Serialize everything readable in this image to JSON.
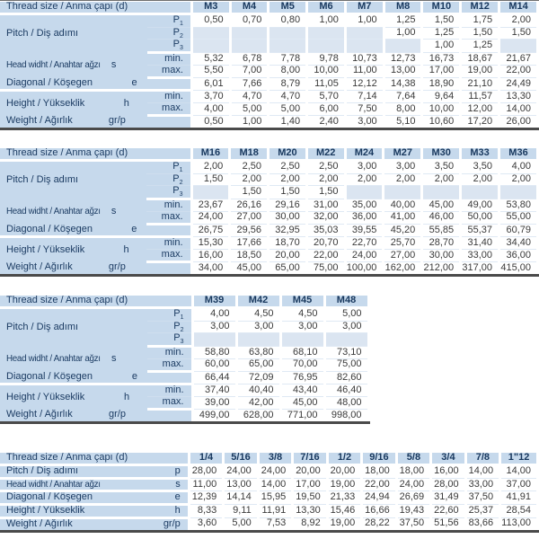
{
  "colors": {
    "label_bg": "#c6d9ec",
    "empty_cell_bg": "#dbe5f1",
    "gridline": "#dfe9f4",
    "label_text": "#1c3c63",
    "header_text": "#17375d",
    "number_text": "#3a3a3a",
    "table_bottom_border": "#4a4a4a"
  },
  "labels": {
    "thread_size": "Thread size / Anma çapı (d)",
    "pitch": "Pitch / Diş adımı",
    "head_width": "Head widht / Anahtar ağzı",
    "diagonal": "Diagonal / Köşegen",
    "height": "Height / Yükseklik",
    "weight": "Weight / Ağırlık",
    "min": "min.",
    "max": "max.",
    "p": "P",
    "sub1": "1",
    "sub2": "2",
    "sub3": "3",
    "sym_head": "s",
    "sym_diagonal": "e",
    "sym_height": "h",
    "sym_weight": "gr/p",
    "sym_pitch_imperial": "p"
  },
  "tables": [
    {
      "id": "metric-1",
      "columns": [
        "M3",
        "M4",
        "M5",
        "M6",
        "M7",
        "M8",
        "M10",
        "M12",
        "M14"
      ],
      "rows": {
        "p1": [
          "0,50",
          "0,70",
          "0,80",
          "1,00",
          "1,00",
          "1,25",
          "1,50",
          "1,75",
          "2,00"
        ],
        "p2": [
          "",
          "",
          "",
          "",
          "",
          "1,00",
          "1,25",
          "1,50",
          "1,50"
        ],
        "p3": [
          "",
          "",
          "",
          "",
          "",
          "",
          "1,00",
          "1,25",
          ""
        ],
        "head_min": [
          "5,32",
          "6,78",
          "7,78",
          "9,78",
          "10,73",
          "12,73",
          "16,73",
          "18,67",
          "21,67"
        ],
        "head_max": [
          "5,50",
          "7,00",
          "8,00",
          "10,00",
          "11,00",
          "13,00",
          "17,00",
          "19,00",
          "22,00"
        ],
        "diagonal": [
          "6,01",
          "7,66",
          "8,79",
          "11,05",
          "12,12",
          "14,38",
          "18,90",
          "21,10",
          "24,49"
        ],
        "height_min": [
          "3,70",
          "4,70",
          "4,70",
          "5,70",
          "7,14",
          "7,64",
          "9,64",
          "11,57",
          "13,30"
        ],
        "height_max": [
          "4,00",
          "5,00",
          "5,00",
          "6,00",
          "7,50",
          "8,00",
          "10,00",
          "12,00",
          "14,00"
        ],
        "weight": [
          "0,50",
          "1,00",
          "1,40",
          "2,40",
          "3,00",
          "5,10",
          "10,60",
          "17,20",
          "26,00"
        ]
      }
    },
    {
      "id": "metric-2",
      "columns": [
        "M16",
        "M18",
        "M20",
        "M22",
        "M24",
        "M27",
        "M30",
        "M33",
        "M36"
      ],
      "rows": {
        "p1": [
          "2,00",
          "2,50",
          "2,50",
          "2,50",
          "3,00",
          "3,00",
          "3,50",
          "3,50",
          "4,00"
        ],
        "p2": [
          "1,50",
          "2,00",
          "2,00",
          "2,00",
          "2,00",
          "2,00",
          "2,00",
          "2,00",
          "2,00"
        ],
        "p3": [
          "",
          "1,50",
          "1,50",
          "1,50",
          "",
          "",
          "",
          "",
          ""
        ],
        "head_min": [
          "23,67",
          "26,16",
          "29,16",
          "31,00",
          "35,00",
          "40,00",
          "45,00",
          "49,00",
          "53,80"
        ],
        "head_max": [
          "24,00",
          "27,00",
          "30,00",
          "32,00",
          "36,00",
          "41,00",
          "46,00",
          "50,00",
          "55,00"
        ],
        "diagonal": [
          "26,75",
          "29,56",
          "32,95",
          "35,03",
          "39,55",
          "45,20",
          "55,85",
          "55,37",
          "60,79"
        ],
        "height_min": [
          "15,30",
          "17,66",
          "18,70",
          "20,70",
          "22,70",
          "25,70",
          "28,70",
          "31,40",
          "34,40"
        ],
        "height_max": [
          "16,00",
          "18,50",
          "20,00",
          "22,00",
          "24,00",
          "27,00",
          "30,00",
          "33,00",
          "36,00"
        ],
        "weight": [
          "34,00",
          "45,00",
          "65,00",
          "75,00",
          "100,00",
          "162,00",
          "212,00",
          "317,00",
          "415,00"
        ]
      }
    },
    {
      "id": "metric-3",
      "columns": [
        "M39",
        "M42",
        "M45",
        "M48"
      ],
      "rows": {
        "p1": [
          "4,00",
          "4,50",
          "4,50",
          "5,00"
        ],
        "p2": [
          "3,00",
          "3,00",
          "3,00",
          "3,00"
        ],
        "p3": [
          "",
          "",
          "",
          ""
        ],
        "head_min": [
          "58,80",
          "63,80",
          "68,10",
          "73,10"
        ],
        "head_max": [
          "60,00",
          "65,00",
          "70,00",
          "75,00"
        ],
        "diagonal": [
          "66,44",
          "72,09",
          "76,95",
          "82,60"
        ],
        "height_min": [
          "37,40",
          "40,40",
          "43,40",
          "46,40"
        ],
        "height_max": [
          "39,00",
          "42,00",
          "45,00",
          "48,00"
        ],
        "weight": [
          "499,00",
          "628,00",
          "771,00",
          "998,00"
        ]
      }
    },
    {
      "id": "imperial",
      "columns": [
        "1/4",
        "5/16",
        "3/8",
        "7/16",
        "1/2",
        "9/16",
        "5/8",
        "3/4",
        "7/8",
        "1\"12"
      ],
      "rows": {
        "pitch": [
          "28,00",
          "24,00",
          "24,00",
          "20,00",
          "20,00",
          "18,00",
          "18,00",
          "16,00",
          "14,00",
          "14,00"
        ],
        "head_width": [
          "11,00",
          "13,00",
          "14,00",
          "17,00",
          "19,00",
          "22,00",
          "24,00",
          "28,00",
          "33,00",
          "37,00"
        ],
        "diagonal": [
          "12,39",
          "14,14",
          "15,95",
          "19,50",
          "21,33",
          "24,94",
          "26,69",
          "31,49",
          "37,50",
          "41,91"
        ],
        "height": [
          "8,33",
          "9,11",
          "11,91",
          "13,30",
          "15,46",
          "16,66",
          "19,43",
          "22,60",
          "25,37",
          "28,54"
        ],
        "weight": [
          "3,60",
          "5,00",
          "7,53",
          "8,92",
          "19,00",
          "28,22",
          "37,50",
          "51,56",
          "83,66",
          "113,00"
        ]
      }
    }
  ]
}
